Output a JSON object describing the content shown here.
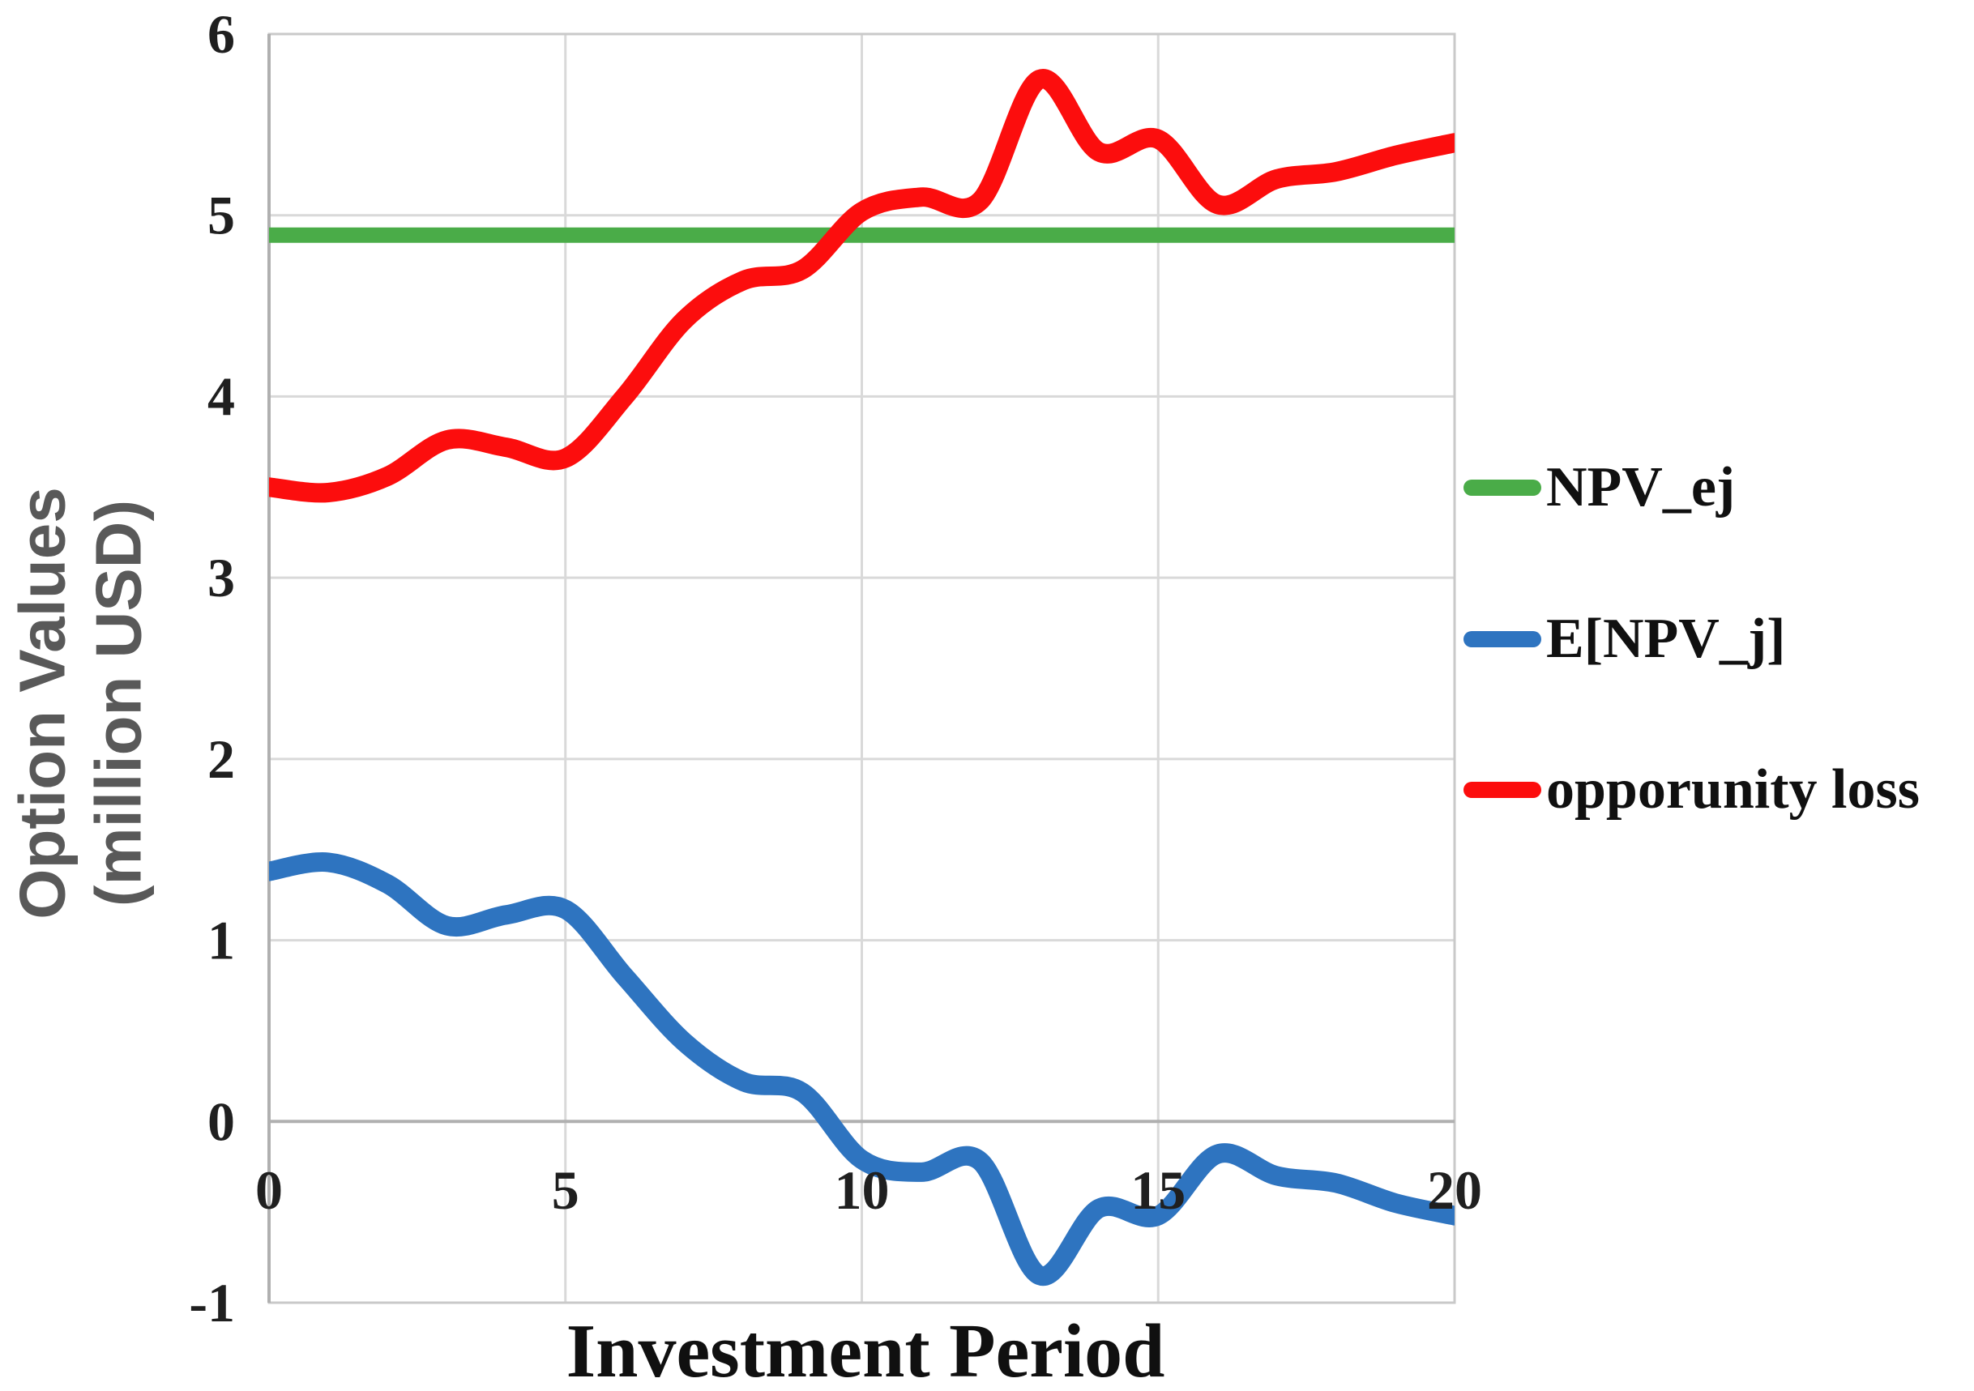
{
  "figure": {
    "background_color": "#ffffff",
    "grid_color": "#d9d9d9",
    "frame_color": "#c9c9c9",
    "axis_line_color": "#b0b0b0",
    "tick_text_color": "#1f1f1f",
    "y_title_color": "#595959",
    "x_title_color": "#101010"
  },
  "axes": {
    "x_title": "Investment Period",
    "y_title_lines": [
      "Option Values",
      "(million USD)"
    ],
    "x_tick_labels": [
      "0",
      "5",
      "10",
      "15",
      "20"
    ],
    "y_tick_labels": [
      "6",
      "5",
      "4",
      "3",
      "2",
      "1",
      "0",
      "-1"
    ]
  },
  "legend": {
    "position": "right"
  },
  "chart_data": {
    "type": "line",
    "title": "",
    "xlabel": "Investment Period",
    "ylabel": "Option Values (million USD)",
    "xlim": [
      0,
      20
    ],
    "ylim": [
      -1,
      6
    ],
    "xticks": [
      0,
      5,
      10,
      15,
      20
    ],
    "yticks": [
      6,
      5,
      4,
      3,
      2,
      1,
      0,
      -1
    ],
    "grid": true,
    "legend_position": "right",
    "x": [
      0,
      1,
      2,
      3,
      4,
      5,
      6,
      7,
      8,
      9,
      10,
      11,
      12,
      13,
      14,
      15,
      16,
      17,
      18,
      19,
      20
    ],
    "series": [
      {
        "name": "NPV_ej",
        "color": "#4aac48",
        "constant_value": 4.89,
        "stroke_width": 19
      },
      {
        "name": "E[NPV_j]",
        "color": "#2e74c0",
        "stroke_width": 24,
        "values": [
          1.38,
          1.43,
          1.31,
          1.08,
          1.14,
          1.17,
          0.8,
          0.44,
          0.22,
          0.16,
          -0.21,
          -0.28,
          -0.22,
          -0.85,
          -0.48,
          -0.52,
          -0.18,
          -0.3,
          -0.34,
          -0.45,
          -0.52
        ]
      },
      {
        "name": "opporunity loss",
        "color": "#fc0d0d",
        "stroke_width": 24,
        "values": [
          3.5,
          3.47,
          3.56,
          3.76,
          3.72,
          3.66,
          4.0,
          4.42,
          4.64,
          4.7,
          5.02,
          5.1,
          5.08,
          5.75,
          5.35,
          5.42,
          5.06,
          5.2,
          5.24,
          5.33,
          5.4
        ]
      }
    ]
  }
}
